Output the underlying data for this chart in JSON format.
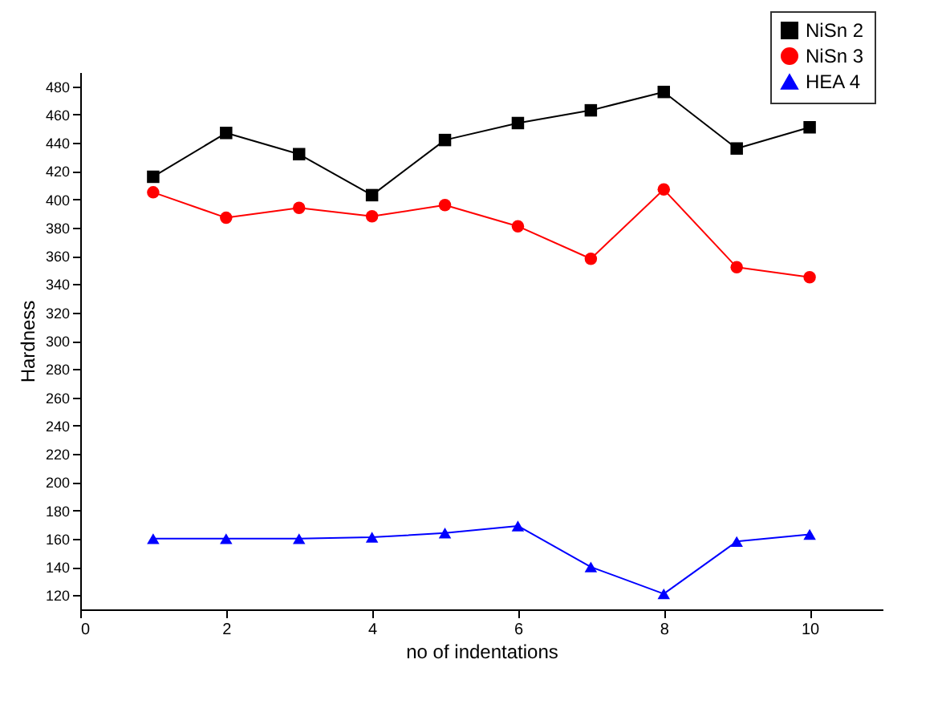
{
  "chart_data": {
    "type": "line",
    "xlabel": "no of indentations",
    "ylabel": "Hardness",
    "x": [
      1,
      2,
      3,
      4,
      5,
      6,
      7,
      8,
      9,
      10
    ],
    "series": [
      {
        "name": "NiSn 2",
        "color": "#000000",
        "marker": "square",
        "values": [
          416,
          447,
          432,
          403,
          442,
          454,
          463,
          476,
          436,
          451
        ]
      },
      {
        "name": "NiSn 3",
        "color": "#ff0000",
        "marker": "circle",
        "values": [
          405,
          387,
          394,
          388,
          396,
          381,
          358,
          407,
          352,
          345
        ]
      },
      {
        "name": "HEA 4",
        "color": "#0000ff",
        "marker": "triangle",
        "values": [
          160,
          160,
          160,
          161,
          164,
          169,
          140,
          121,
          158,
          163
        ]
      }
    ],
    "xlim": [
      0,
      11
    ],
    "xticks": [
      0,
      2,
      4,
      6,
      8,
      10
    ],
    "ylim": [
      110,
      490
    ],
    "yticks": [
      120,
      140,
      160,
      180,
      200,
      220,
      240,
      260,
      280,
      300,
      320,
      340,
      360,
      380,
      400,
      420,
      440,
      460,
      480
    ],
    "grid": false,
    "legend": "top right",
    "line_style": "solid"
  }
}
